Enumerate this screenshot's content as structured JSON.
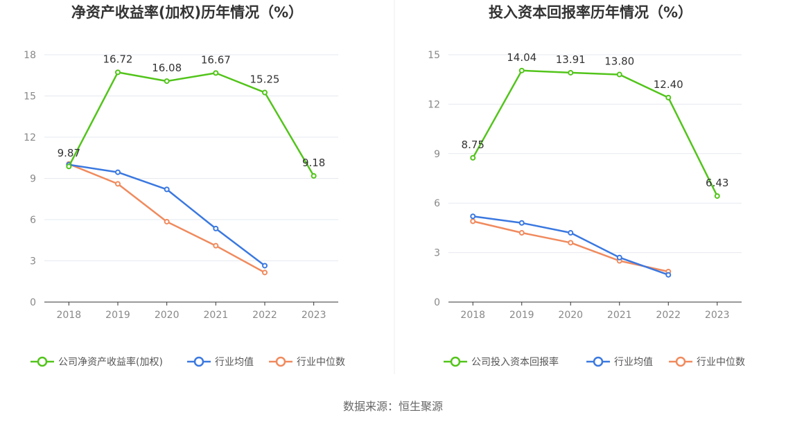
{
  "source_text": "数据来源：恒生聚源",
  "colors": {
    "company": "#52c41a",
    "industry_avg": "#3a78e0",
    "industry_median": "#f08a5d"
  },
  "chart_data": [
    {
      "type": "line",
      "title": "净资产收益率(加权)历年情况（%）",
      "categories": [
        "2018",
        "2019",
        "2020",
        "2021",
        "2022",
        "2023"
      ],
      "ylim": [
        0,
        18
      ],
      "yticks": [
        0,
        3,
        6,
        9,
        12,
        15,
        18
      ],
      "grid": true,
      "legend_position": "bottom",
      "series": [
        {
          "name": "公司净资产收益率(加权)",
          "color": "#52c41a",
          "values": [
            9.87,
            16.72,
            16.08,
            16.67,
            15.25,
            9.18
          ],
          "labels": [
            "9.87",
            "16.72",
            "16.08",
            "16.67",
            "15.25",
            "9.18"
          ]
        },
        {
          "name": "行业均值",
          "color": "#3a78e0",
          "values": [
            10.0,
            9.45,
            8.2,
            5.35,
            2.65,
            null
          ]
        },
        {
          "name": "行业中位数",
          "color": "#f08a5d",
          "values": [
            10.05,
            8.6,
            5.85,
            4.1,
            2.15,
            null
          ]
        }
      ]
    },
    {
      "type": "line",
      "title": "投入资本回报率历年情况（%）",
      "categories": [
        "2018",
        "2019",
        "2020",
        "2021",
        "2022",
        "2023"
      ],
      "ylim": [
        0,
        15
      ],
      "yticks": [
        0,
        3,
        6,
        9,
        12,
        15
      ],
      "grid": true,
      "legend_position": "bottom",
      "series": [
        {
          "name": "公司投入资本回报率",
          "color": "#52c41a",
          "values": [
            8.75,
            14.04,
            13.91,
            13.8,
            12.4,
            6.43
          ],
          "labels": [
            "8.75",
            "14.04",
            "13.91",
            "13.80",
            "12.40",
            "6.43"
          ]
        },
        {
          "name": "行业均值",
          "color": "#3a78e0",
          "values": [
            5.2,
            4.8,
            4.2,
            2.7,
            1.65,
            null
          ]
        },
        {
          "name": "行业中位数",
          "color": "#f08a5d",
          "values": [
            4.9,
            4.2,
            3.6,
            2.5,
            1.85,
            null
          ]
        }
      ]
    }
  ]
}
